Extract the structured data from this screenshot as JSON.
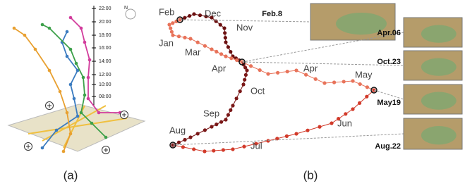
{
  "panel_a": {
    "time_labels": [
      "22:00",
      "20:00",
      "18:00",
      "16:00",
      "14:00",
      "12:00",
      "10:00",
      "08:00"
    ],
    "compass": "N",
    "caption": "(a)"
  },
  "panel_b": {
    "month_labels": [
      "Feb",
      "Dec",
      "Nov",
      "Jan",
      "Mar",
      "Apr",
      "Apr",
      "Oct",
      "May",
      "Sep",
      "Jun",
      "Aug",
      "Jul"
    ],
    "map_dates": [
      "Feb.8",
      "Apr.06",
      "Oct.23",
      "May19",
      "Aug.22"
    ],
    "caption": "(b)"
  }
}
